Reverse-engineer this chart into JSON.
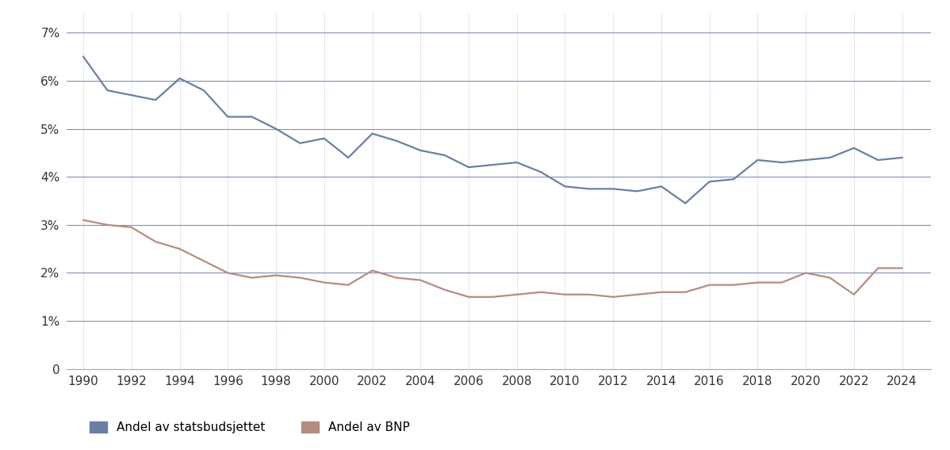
{
  "years": [
    1990,
    1991,
    1992,
    1993,
    1994,
    1995,
    1996,
    1997,
    1998,
    1999,
    2000,
    2001,
    2002,
    2003,
    2004,
    2005,
    2006,
    2007,
    2008,
    2009,
    2010,
    2011,
    2012,
    2013,
    2014,
    2015,
    2016,
    2017,
    2018,
    2019,
    2020,
    2021,
    2022,
    2023,
    2024
  ],
  "statsbudsjettet": [
    6.5,
    5.8,
    5.7,
    5.6,
    6.05,
    5.8,
    5.25,
    5.25,
    5.0,
    4.7,
    4.8,
    4.4,
    4.9,
    4.75,
    4.55,
    4.45,
    4.2,
    4.25,
    4.3,
    4.1,
    3.8,
    3.75,
    3.75,
    3.7,
    3.8,
    3.45,
    3.9,
    3.95,
    4.35,
    4.3,
    4.35,
    4.4,
    4.6,
    4.35,
    4.4
  ],
  "bnp": [
    3.1,
    3.0,
    2.95,
    2.65,
    2.5,
    2.25,
    2.0,
    1.9,
    1.95,
    1.9,
    1.8,
    1.75,
    2.05,
    1.9,
    1.85,
    1.65,
    1.5,
    1.5,
    1.55,
    1.6,
    1.55,
    1.55,
    1.5,
    1.55,
    1.6,
    1.6,
    1.75,
    1.75,
    1.8,
    1.8,
    2.0,
    1.9,
    1.55,
    2.1,
    2.1
  ],
  "line1_color": "#6b7fa3",
  "line2_color": "#b58c80",
  "background_color": "#ffffff",
  "grid_color_h": "#8090b8",
  "grid_color_v": "#c8cfe0",
  "yticks": [
    0,
    1,
    2,
    3,
    4,
    5,
    6,
    7
  ],
  "ytick_labels": [
    "0",
    "1%",
    "2%",
    "3%",
    "4%",
    "5%",
    "6%",
    "7%"
  ],
  "xticks": [
    1990,
    1992,
    1994,
    1996,
    1998,
    2000,
    2002,
    2004,
    2006,
    2008,
    2010,
    2012,
    2014,
    2016,
    2018,
    2020,
    2022,
    2024
  ],
  "legend_label1": "Andel av statsbudsjettet",
  "legend_label2": "Andel av BNP",
  "ylim": [
    0,
    7.4
  ],
  "xlim": [
    1989.3,
    2025.2
  ]
}
